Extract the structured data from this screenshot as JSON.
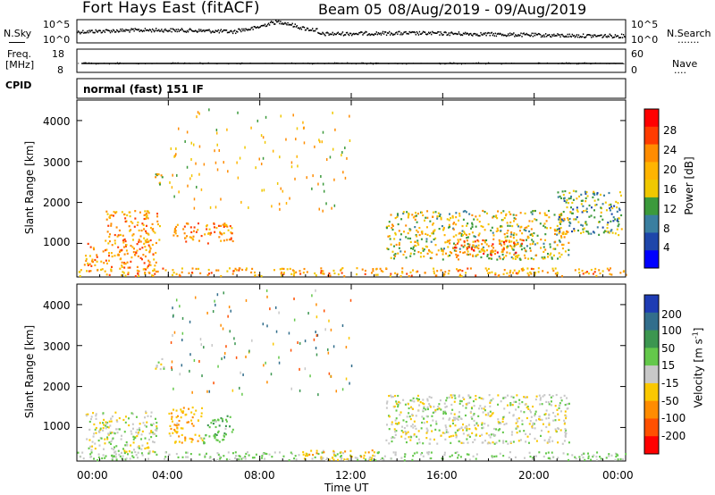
{
  "header": {
    "title": "Fort Hays East (fitACF)",
    "beam_label": "Beam 05",
    "date_range": "08/Aug/2019 - 09/Aug/2019"
  },
  "sky_panel": {
    "left_label": "N.Sky",
    "left_ticks": [
      "10^5",
      "10^0"
    ],
    "right_ticks": [
      "10^5",
      "10^0"
    ],
    "right_label": "N.Search",
    "right_marker": "......."
  },
  "freq_panel": {
    "left_label_1": "Freq.",
    "left_label_2": "[MHz]",
    "left_ticks": [
      "18",
      "8"
    ],
    "right_ticks": [
      "60",
      "0"
    ],
    "right_label": "Nave",
    "right_marker": "...."
  },
  "cpid": {
    "label": "CPID",
    "mode": "normal (fast) 151 IF"
  },
  "power_panel": {
    "ylabel": "Slant Range [km]",
    "yticks": [
      "4000",
      "3000",
      "2000",
      "1000"
    ],
    "colorbar_label": "Power [dB]",
    "colorbar_ticks": [
      "28",
      "24",
      "20",
      "16",
      "12",
      "8",
      "4"
    ],
    "colorbar_colors": [
      "#ff0000",
      "#ff3c00",
      "#ff8c00",
      "#ffb400",
      "#f0c800",
      "#3c9a3c",
      "#3a7fa0",
      "#1e46aa",
      "#0000ff"
    ]
  },
  "velocity_panel": {
    "ylabel": "Slant Range [km]",
    "yticks": [
      "4000",
      "3000",
      "2000",
      "1000"
    ],
    "colorbar_label": "Velocity [m s",
    "colorbar_label_sup": "-1",
    "colorbar_label_end": "]",
    "colorbar_ticks": [
      "200",
      "100",
      "50",
      "15",
      "-15",
      "-50",
      "-100",
      "-200"
    ],
    "colorbar_colors": [
      "#1e3cb4",
      "#326e8c",
      "#3c9650",
      "#64c84b",
      "#c8c8c8",
      "#fac800",
      "#ff8c00",
      "#ff5000",
      "#ff0000"
    ]
  },
  "x_axis": {
    "ticks": [
      "00:00",
      "04:00",
      "08:00",
      "12:00",
      "16:00",
      "20:00",
      "00:00"
    ],
    "label": "Time UT"
  },
  "chart_data": {
    "type": "heatmap",
    "title": "Fort Hays East (fitACF)",
    "subtitle": "Beam 05 08/Aug/2019 - 09/Aug/2019",
    "xlabel": "Time UT",
    "ylabel": "Slant Range [km]",
    "xlim": [
      0,
      24
    ],
    "ylim": [
      180,
      4500
    ],
    "grid": false,
    "panels": [
      {
        "name": "Power [dB]",
        "zlim": [
          0,
          30
        ],
        "regions": [
          {
            "t0": 0.0,
            "t1": 24.0,
            "r0": 200,
            "r1": 400,
            "level": 18
          },
          {
            "t0": 0.3,
            "t1": 3.5,
            "r0": 400,
            "r1": 1000,
            "level": 20
          },
          {
            "t0": 1.2,
            "t1": 3.6,
            "r0": 1000,
            "r1": 1800,
            "level": 18
          },
          {
            "t0": 3.4,
            "t1": 4.0,
            "r0": 2400,
            "r1": 2700,
            "level": 14
          },
          {
            "t0": 4.0,
            "t1": 6.8,
            "r0": 1000,
            "r1": 1500,
            "level": 20
          },
          {
            "t0": 13.5,
            "t1": 21.5,
            "r0": 600,
            "r1": 1800,
            "level": 14
          },
          {
            "t0": 16.5,
            "t1": 19.5,
            "r0": 700,
            "r1": 1100,
            "level": 22
          },
          {
            "t0": 21.0,
            "t1": 23.8,
            "r0": 1200,
            "r1": 2300,
            "level": 10
          }
        ]
      },
      {
        "name": "Velocity [m s-1]",
        "zlim": [
          -200,
          200
        ],
        "regions": [
          {
            "t0": 0.0,
            "t1": 24.0,
            "r0": 200,
            "r1": 400,
            "level": 20
          },
          {
            "t0": 0.3,
            "t1": 3.5,
            "r0": 400,
            "r1": 1400,
            "level": 0
          },
          {
            "t0": 3.4,
            "t1": 4.0,
            "r0": 2400,
            "r1": 2700,
            "level": 0
          },
          {
            "t0": 4.0,
            "t1": 5.5,
            "r0": 600,
            "r1": 1500,
            "level": -40
          },
          {
            "t0": 5.5,
            "t1": 6.8,
            "r0": 600,
            "r1": 1300,
            "level": 40
          },
          {
            "t0": 9.8,
            "t1": 13.0,
            "r0": 200,
            "r1": 450,
            "level": -40
          },
          {
            "t0": 13.5,
            "t1": 21.5,
            "r0": 600,
            "r1": 1800,
            "level": 0
          }
        ]
      }
    ]
  }
}
